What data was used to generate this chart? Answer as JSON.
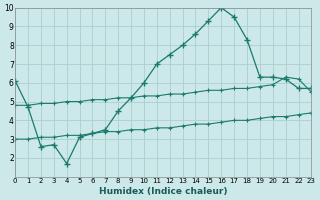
{
  "xlabel": "Humidex (Indice chaleur)",
  "bg_color": "#cce8e8",
  "grid_color": "#aad0d0",
  "line_color": "#1a7a6e",
  "xlim": [
    0,
    23
  ],
  "ylim": [
    1,
    10
  ],
  "xticks": [
    0,
    1,
    2,
    3,
    4,
    5,
    6,
    7,
    8,
    9,
    10,
    11,
    12,
    13,
    14,
    15,
    16,
    17,
    18,
    19,
    20,
    21,
    22,
    23
  ],
  "yticks": [
    2,
    3,
    4,
    5,
    6,
    7,
    8,
    9,
    10
  ],
  "series1_x": [
    0,
    1,
    2,
    3,
    4,
    5,
    6,
    7,
    8,
    9,
    10,
    11,
    12,
    13,
    14,
    15,
    16,
    17,
    18,
    19,
    20,
    21,
    22,
    23
  ],
  "series1_y": [
    6.1,
    4.7,
    2.6,
    2.7,
    1.7,
    3.1,
    3.3,
    3.5,
    4.5,
    5.2,
    6.0,
    7.0,
    7.5,
    8.0,
    8.6,
    9.3,
    10.0,
    9.5,
    8.3,
    6.3,
    6.3,
    6.2,
    5.7,
    5.7
  ],
  "series2_x": [
    0,
    1,
    2,
    3,
    4,
    5,
    6,
    7,
    8,
    9,
    10,
    11,
    12,
    13,
    14,
    15,
    16,
    17,
    18,
    19,
    20,
    21,
    22,
    23
  ],
  "series2_y": [
    4.8,
    4.8,
    4.9,
    4.9,
    5.0,
    5.0,
    5.1,
    5.1,
    5.2,
    5.2,
    5.3,
    5.3,
    5.4,
    5.4,
    5.5,
    5.6,
    5.6,
    5.7,
    5.7,
    5.8,
    5.9,
    6.3,
    6.2,
    5.5
  ],
  "series3_x": [
    0,
    1,
    2,
    3,
    4,
    5,
    6,
    7,
    8,
    9,
    10,
    11,
    12,
    13,
    14,
    15,
    16,
    17,
    18,
    19,
    20,
    21,
    22,
    23
  ],
  "series3_y": [
    3.0,
    3.0,
    3.1,
    3.1,
    3.2,
    3.2,
    3.3,
    3.4,
    3.4,
    3.5,
    3.5,
    3.6,
    3.6,
    3.7,
    3.8,
    3.8,
    3.9,
    4.0,
    4.0,
    4.1,
    4.2,
    4.2,
    4.3,
    4.4
  ]
}
